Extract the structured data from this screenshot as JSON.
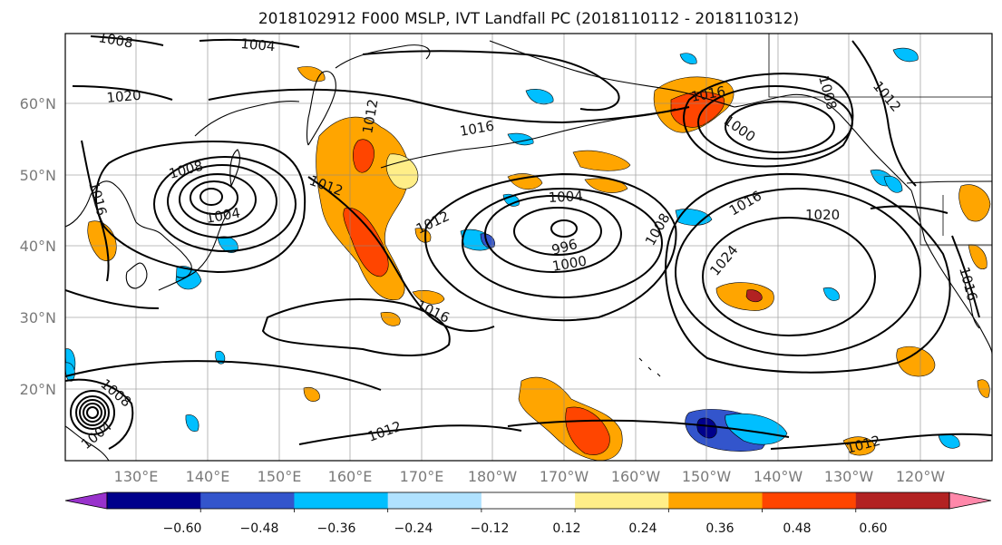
{
  "title": "2018102912 F000 MSLP, IVT Landfall PC (2018110112 - 2018110312)",
  "lat_labels": [
    "60°N",
    "50°N",
    "40°N",
    "30°N",
    "20°N"
  ],
  "lon_labels": [
    "130°E",
    "140°E",
    "150°E",
    "160°E",
    "170°E",
    "180°W",
    "170°W",
    "160°W",
    "150°W",
    "140°W",
    "130°W",
    "120°W"
  ],
  "colorbar": {
    "tick_labels": [
      "−0.60",
      "−0.48",
      "−0.36",
      "−0.24",
      "−0.12",
      "0.12",
      "0.24",
      "0.36",
      "0.48",
      "0.60"
    ],
    "colors": [
      "#9932cc",
      "#00008b",
      "#3355cc",
      "#00bfff",
      "#b0e2ff",
      "#ffffff",
      "#ffee88",
      "#ffa500",
      "#ff4500",
      "#b22222",
      "#ff88aa"
    ]
  },
  "contour_labels": [
    {
      "text": "1008"
    },
    {
      "text": "1004"
    },
    {
      "text": "1020"
    },
    {
      "text": "1016"
    },
    {
      "text": "1008"
    },
    {
      "text": "1016"
    },
    {
      "text": "1004"
    },
    {
      "text": "1012"
    },
    {
      "text": "1008"
    },
    {
      "text": "1012"
    },
    {
      "text": "1000"
    },
    {
      "text": "1016"
    },
    {
      "text": "1004"
    },
    {
      "text": "1012"
    },
    {
      "text": "996"
    },
    {
      "text": "1000"
    },
    {
      "text": "1008"
    },
    {
      "text": "1016"
    },
    {
      "text": "1020"
    },
    {
      "text": "1024"
    },
    {
      "text": "1016"
    },
    {
      "text": "1012"
    },
    {
      "text": "1016"
    },
    {
      "text": "1008"
    },
    {
      "text": "1004"
    },
    {
      "text": "1012"
    },
    {
      "text": "1012"
    }
  ]
}
